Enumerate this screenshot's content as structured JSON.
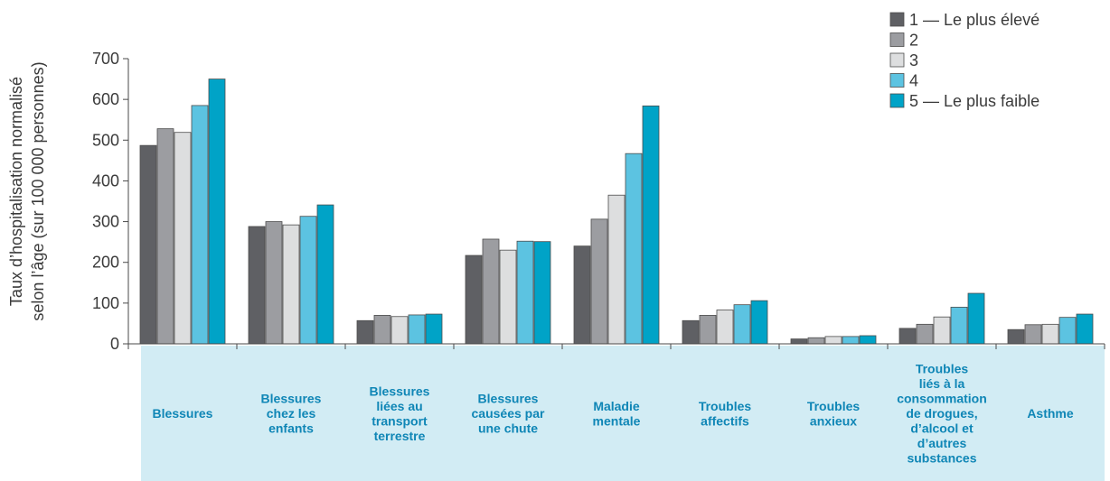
{
  "chart_data": {
    "type": "bar",
    "title": "",
    "xlabel": "",
    "ylabel_lines": [
      "Taux d’hospitalisation normalisé",
      "selon l’âge (sur 100 000 personnes)"
    ],
    "ylim": [
      0,
      700
    ],
    "yticks": [
      0,
      100,
      200,
      300,
      400,
      500,
      600,
      700
    ],
    "grid": false,
    "legend_position": "top-right",
    "categories": [
      [
        "Blessures"
      ],
      [
        "Blessures",
        "chez les",
        "enfants"
      ],
      [
        "Blessures",
        "liées au",
        "transport",
        "terrestre"
      ],
      [
        "Blessures",
        "causées par",
        "une chute"
      ],
      [
        "Maladie",
        "mentale"
      ],
      [
        "Troubles",
        "affectifs"
      ],
      [
        "Troubles",
        "anxieux"
      ],
      [
        "Troubles",
        "liés à la",
        "consommation",
        "de drogues,",
        "d’alcool et",
        "d’autres",
        "substances"
      ],
      [
        "Asthme"
      ]
    ],
    "series": [
      {
        "name": "1 — Le plus élevé",
        "color": "#5f6064",
        "values": [
          487,
          288,
          57,
          217,
          240,
          57,
          12,
          38,
          35
        ]
      },
      {
        "name": "2",
        "color": "#9c9da1",
        "values": [
          528,
          300,
          70,
          257,
          306,
          70,
          15,
          48,
          47
        ]
      },
      {
        "name": "3",
        "color": "#dddedf",
        "values": [
          519,
          292,
          67,
          230,
          365,
          83,
          18,
          66,
          48
        ]
      },
      {
        "name": "4",
        "color": "#5cc3e1",
        "values": [
          585,
          313,
          71,
          252,
          467,
          96,
          18,
          90,
          65
        ]
      },
      {
        "name": "5 — Le plus faible",
        "color": "#00a3c7",
        "values": [
          650,
          341,
          73,
          251,
          584,
          106,
          20,
          124,
          73
        ]
      }
    ],
    "category_band_color": "#d2ecf4",
    "category_label_color": "#0f86b6",
    "axis_color": "#4a4a4a"
  }
}
